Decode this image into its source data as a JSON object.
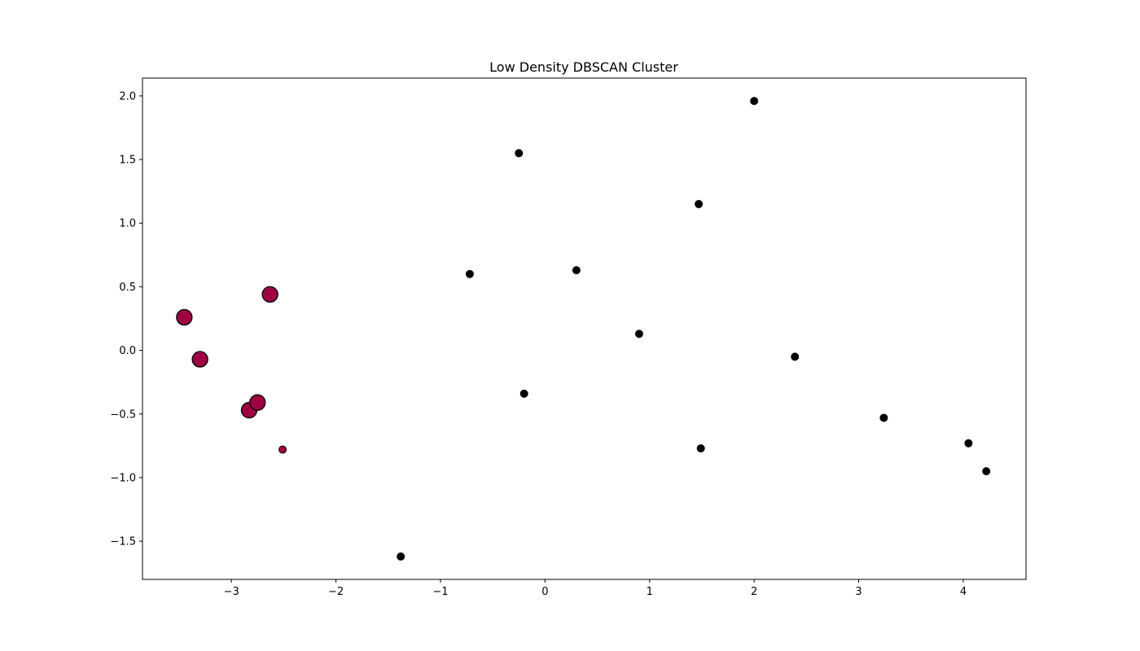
{
  "chart_data": {
    "type": "scatter",
    "title": "Low Density DBSCAN Cluster",
    "xlabel": "",
    "ylabel": "",
    "xlim": [
      -3.85,
      4.6
    ],
    "ylim": [
      -1.8,
      2.14
    ],
    "x_ticks": [
      -3,
      -2,
      -1,
      0,
      1,
      2,
      3,
      4
    ],
    "x_tick_labels": [
      "−3",
      "−2",
      "−1",
      "0",
      "1",
      "2",
      "3",
      "4"
    ],
    "y_ticks": [
      -1.5,
      -1.0,
      -0.5,
      0.0,
      0.5,
      1.0,
      1.5,
      2.0
    ],
    "y_tick_labels": [
      "−1.5",
      "−1.0",
      "−0.5",
      "0.0",
      "0.5",
      "1.0",
      "1.5",
      "2.0"
    ],
    "grid": false,
    "colors": {
      "cluster": "#9e0142",
      "noise": "#000000",
      "edge": "#000000"
    },
    "series": [
      {
        "role": "cluster-core",
        "marker_size": "large",
        "color": "#9e0142",
        "x": [
          -3.45,
          -3.3,
          -2.83,
          -2.75,
          -2.63
        ],
        "y": [
          0.26,
          -0.07,
          -0.47,
          -0.41,
          0.44
        ]
      },
      {
        "role": "cluster-border",
        "marker_size": "small",
        "color": "#9e0142",
        "x": [
          -2.51
        ],
        "y": [
          -0.78
        ]
      },
      {
        "role": "noise",
        "marker_size": "small",
        "color": "#000000",
        "x": [
          -1.38,
          -0.72,
          -0.25,
          -0.2,
          0.3,
          0.9,
          1.47,
          1.49,
          2.0,
          2.39,
          3.24,
          4.05,
          4.22
        ],
        "y": [
          -1.62,
          0.6,
          1.55,
          -0.34,
          0.63,
          0.13,
          1.15,
          -0.77,
          1.96,
          -0.05,
          -0.53,
          -0.73,
          -0.95
        ]
      }
    ]
  }
}
